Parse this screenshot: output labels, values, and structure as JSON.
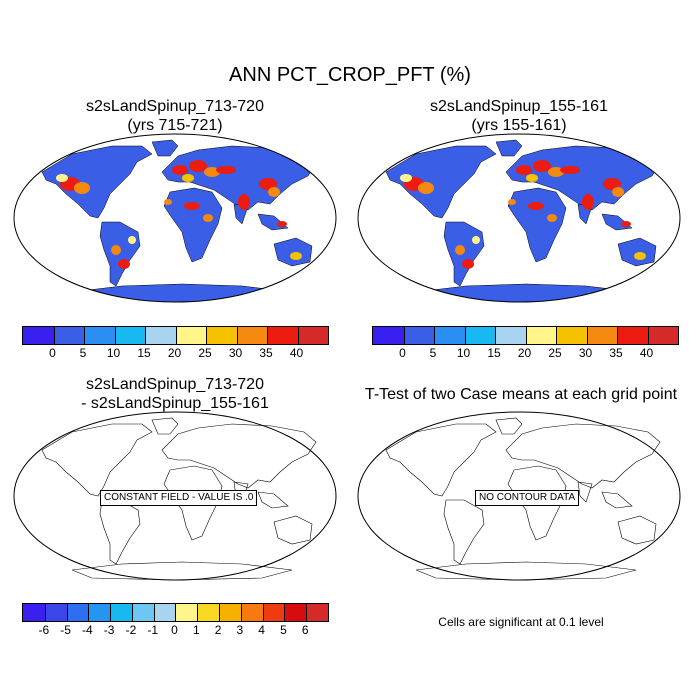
{
  "title": "ANN PCT_CROP_PFT (%)",
  "panels": {
    "top_left": {
      "title_line1": "s2sLandSpinup_713-720",
      "title_line2": "(yrs 715-721)"
    },
    "top_right": {
      "title_line1": "s2sLandSpinup_155-161",
      "title_line2": "(yrs 155-161)"
    },
    "bottom_left": {
      "title_line1": "s2sLandSpinup_713-720",
      "title_line2": "- s2sLandSpinup_155-161",
      "field_label": "CONSTANT FIELD - VALUE IS .0"
    },
    "bottom_right": {
      "title": "T-Test of two Case means at each grid point",
      "field_label": "NO CONTOUR DATA",
      "note": "Cells are significant at 0.1 level"
    }
  },
  "colorbars": {
    "top": {
      "labels": [
        "0",
        "5",
        "10",
        "15",
        "20",
        "25",
        "30",
        "35",
        "40"
      ],
      "colors": [
        "#3a20f0",
        "#3a5ee6",
        "#2b8ef2",
        "#18b8f0",
        "#a9d4f0",
        "#fff58a",
        "#f6c200",
        "#f68a10",
        "#ec1c10",
        "#d42a2a"
      ]
    },
    "bottom": {
      "labels": [
        "-6",
        "-5",
        "-4",
        "-3",
        "-2",
        "-1",
        "0",
        "1",
        "2",
        "3",
        "4",
        "5",
        "6"
      ],
      "colors": [
        "#3a20f0",
        "#3a46e8",
        "#2e6ef0",
        "#2496f2",
        "#18b8f0",
        "#6cc8f2",
        "#a9d4f0",
        "#fff58a",
        "#f8d820",
        "#f6b000",
        "#f67a10",
        "#f03a10",
        "#d80c0c",
        "#d42a2a"
      ]
    }
  },
  "map_colors": {
    "land_fill": "#3a5ee6",
    "crop_high": "#ec1c10",
    "crop_mid": "#f68a10",
    "crop_low": "#fff58a",
    "ocean": "#ffffff"
  }
}
